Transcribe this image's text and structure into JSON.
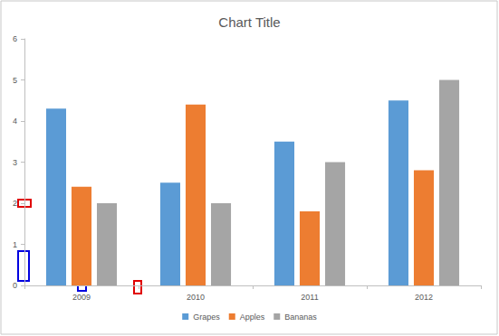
{
  "chart_data": {
    "type": "bar",
    "title": "Chart Title",
    "categories": [
      "2009",
      "2010",
      "2011",
      "2012"
    ],
    "series": [
      {
        "name": "Grapes",
        "color": "#5b9bd5",
        "values": [
          4.3,
          2.5,
          3.5,
          4.5
        ]
      },
      {
        "name": "Apples",
        "color": "#ed7d31",
        "values": [
          2.4,
          4.4,
          1.8,
          2.8
        ]
      },
      {
        "name": "Bananas",
        "color": "#a5a5a5",
        "values": [
          2,
          2,
          3,
          5
        ]
      }
    ],
    "ylim": [
      0,
      6
    ],
    "yticks": [
      0,
      1,
      2,
      3,
      4,
      5,
      6
    ],
    "grid": false,
    "legend": "bottom"
  }
}
